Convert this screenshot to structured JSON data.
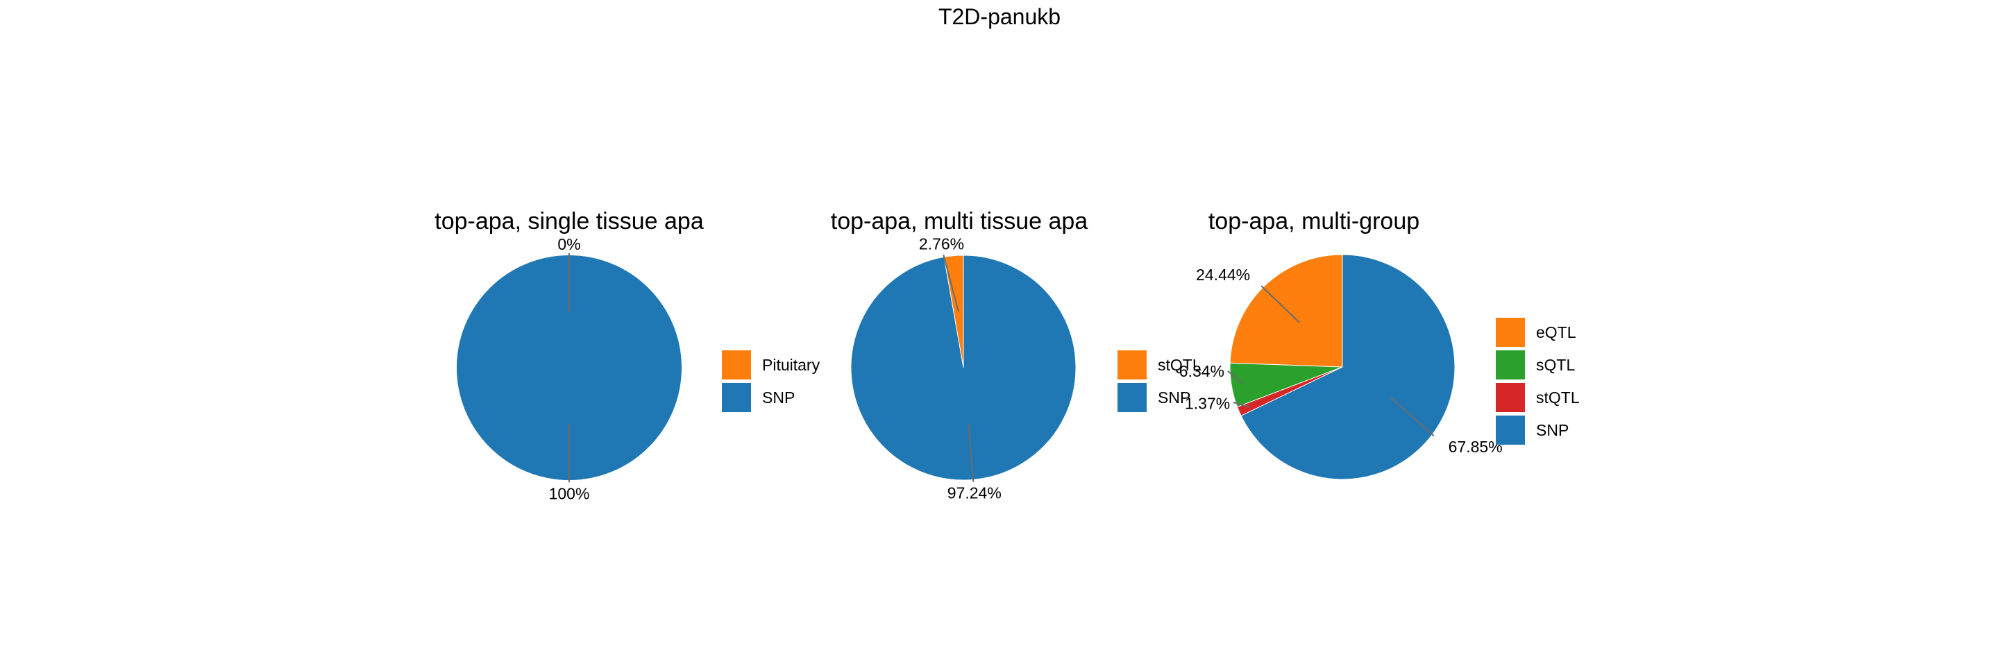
{
  "title": "T2D-panukb",
  "chart_data": [
    {
      "type": "pie",
      "title": "top-apa, single tissue apa",
      "slices": [
        {
          "label": "Pituitary",
          "value": 0,
          "pct": "0%",
          "color": "#ff7f0e"
        },
        {
          "label": "SNP",
          "value": 100,
          "pct": "100%",
          "color": "#1f77b4"
        }
      ],
      "legend": [
        "Pituitary",
        "SNP"
      ],
      "legend_position": "right"
    },
    {
      "type": "pie",
      "title": "top-apa, multi tissue apa",
      "slices": [
        {
          "label": "stQTL",
          "value": 2.76,
          "pct": "2.76%",
          "color": "#ff7f0e"
        },
        {
          "label": "SNP",
          "value": 97.24,
          "pct": "97.24%",
          "color": "#1f77b4"
        }
      ],
      "legend": [
        "stQTL",
        "SNP"
      ],
      "legend_position": "right"
    },
    {
      "type": "pie",
      "title": "top-apa, multi-group",
      "slices": [
        {
          "label": "eQTL",
          "value": 24.44,
          "pct": "24.44%",
          "color": "#ff7f0e"
        },
        {
          "label": "sQTL",
          "value": 6.34,
          "pct": "6.34%",
          "color": "#2ca02c"
        },
        {
          "label": "stQTL",
          "value": 1.37,
          "pct": "1.37%",
          "color": "#d62728"
        },
        {
          "label": "SNP",
          "value": 67.85,
          "pct": "67.85%",
          "color": "#1f77b4"
        }
      ],
      "legend": [
        "eQTL",
        "sQTL",
        "stQTL",
        "SNP"
      ],
      "legend_position": "right"
    }
  ]
}
